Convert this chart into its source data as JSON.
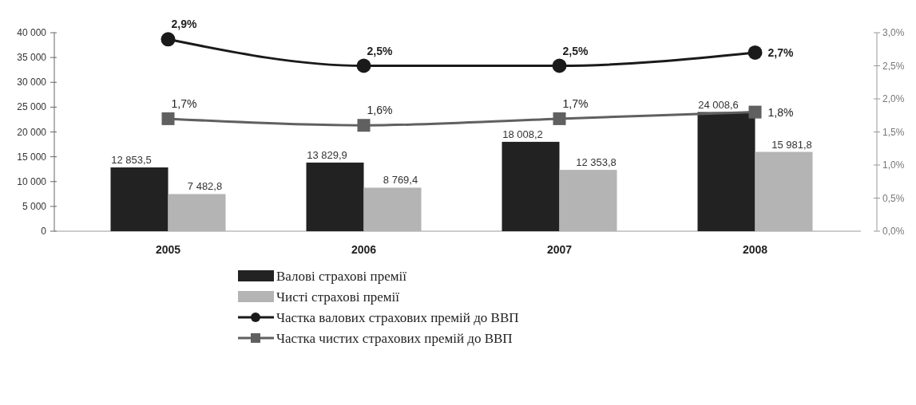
{
  "chart_data": {
    "type": "bar",
    "categories": [
      "2005",
      "2006",
      "2007",
      "2008"
    ],
    "series": [
      {
        "name": "Валові страхові премії",
        "color": "#222222",
        "values": [
          12853.5,
          13829.9,
          18008.2,
          24008.6
        ],
        "value_labels": [
          "12 853,5",
          "13 829,9",
          "18 008,2",
          "24 008,6"
        ]
      },
      {
        "name": "Чисті страхові премії",
        "color": "#b4b4b4",
        "values": [
          7482.8,
          8769.4,
          12353.8,
          15981.8
        ],
        "value_labels": [
          "7 482,8",
          "8 769,4",
          "12 353,8",
          "15 981,8"
        ]
      },
      {
        "name": "Частка валових страхових премій до ВВП",
        "type": "line",
        "axis": "y2",
        "marker": "circle",
        "color": "#1a1a1a",
        "values": [
          2.9,
          2.5,
          2.5,
          2.7
        ],
        "value_labels": [
          "2,9%",
          "2,5%",
          "2,5%",
          "2,7%"
        ]
      },
      {
        "name": "Частка чистих страхових премій до ВВП",
        "type": "line",
        "axis": "y2",
        "marker": "square",
        "color": "#606060",
        "values": [
          1.7,
          1.6,
          1.7,
          1.8
        ],
        "value_labels": [
          "1,7%",
          "1,6%",
          "1,7%",
          "1,8%"
        ]
      }
    ],
    "ylim": [
      0,
      40000
    ],
    "yticks": [
      {
        "value": 0,
        "label": "0"
      },
      {
        "value": 5000,
        "label": "5 000"
      },
      {
        "value": 10000,
        "label": "10 000"
      },
      {
        "value": 15000,
        "label": "15 000"
      },
      {
        "value": 20000,
        "label": "20 000"
      },
      {
        "value": 25000,
        "label": "25 000"
      },
      {
        "value": 30000,
        "label": "30 000"
      },
      {
        "value": 35000,
        "label": "35 000"
      },
      {
        "value": 40000,
        "label": "40 000"
      }
    ],
    "y2lim": [
      0,
      3
    ],
    "y2ticks": [
      {
        "value": 0,
        "label": "0,0%"
      },
      {
        "value": 0.5,
        "label": "0,5%"
      },
      {
        "value": 1,
        "label": "1,0%"
      },
      {
        "value": 1.5,
        "label": "1,5%"
      },
      {
        "value": 2,
        "label": "2,0%"
      },
      {
        "value": 2.5,
        "label": "2,5%"
      },
      {
        "value": 3,
        "label": "3,0%"
      }
    ],
    "legend": "bottom"
  }
}
